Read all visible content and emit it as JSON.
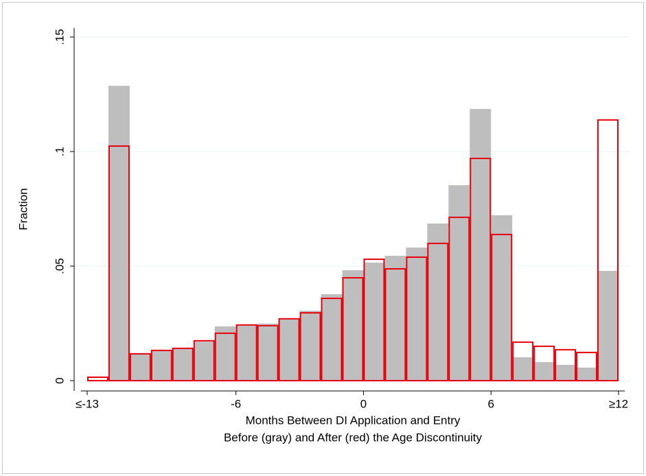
{
  "chart_data": {
    "type": "histogram",
    "ylabel": "Fraction",
    "xlabel": [
      "Months Between DI Application and Entry",
      "Before (gray) and After (red) the Age Discontinuity"
    ],
    "bins": [
      -13,
      -12,
      -11,
      -10,
      -9,
      -8,
      -7,
      -6,
      -5,
      -4,
      -3,
      -2,
      -1,
      0,
      1,
      2,
      3,
      4,
      5,
      6,
      7,
      8,
      9,
      10,
      11,
      12
    ],
    "series": [
      {
        "color": "#bebebe",
        "fill": true,
        "values": [
          0,
          0.1287,
          0.012,
          0.013,
          0.014,
          0.017,
          0.0237,
          0.024,
          0.0249,
          0.027,
          0.0305,
          0.0377,
          0.0482,
          0.0515,
          0.0545,
          0.0581,
          0.0686,
          0.0853,
          0.1186,
          0.0722,
          0.0102,
          0.0081,
          0.0069,
          0.0057,
          0.0479
        ]
      },
      {
        "color": "#e8000b",
        "fill": false,
        "values": [
          0.0015,
          0.1024,
          0.0117,
          0.0132,
          0.0141,
          0.0174,
          0.0207,
          0.0243,
          0.024,
          0.027,
          0.0296,
          0.0359,
          0.0449,
          0.053,
          0.0488,
          0.0539,
          0.0599,
          0.0713,
          0.097,
          0.0638,
          0.0168,
          0.015,
          0.0135,
          0.0123,
          0.1138
        ]
      }
    ],
    "xlim": [
      -13.3,
      12.3
    ],
    "xticks": [
      {
        "value": -13,
        "label": "≤-13"
      },
      -6,
      0,
      6,
      {
        "value": 12,
        "label": "≥12"
      }
    ],
    "ylim": [
      -0.0045,
      0.154
    ],
    "yticks": [
      0,
      {
        "value": 0.05,
        "label": ".05"
      },
      {
        "value": 0.1,
        "label": ".1"
      },
      {
        "value": 0.15,
        "label": ".15"
      }
    ],
    "grid": true
  }
}
